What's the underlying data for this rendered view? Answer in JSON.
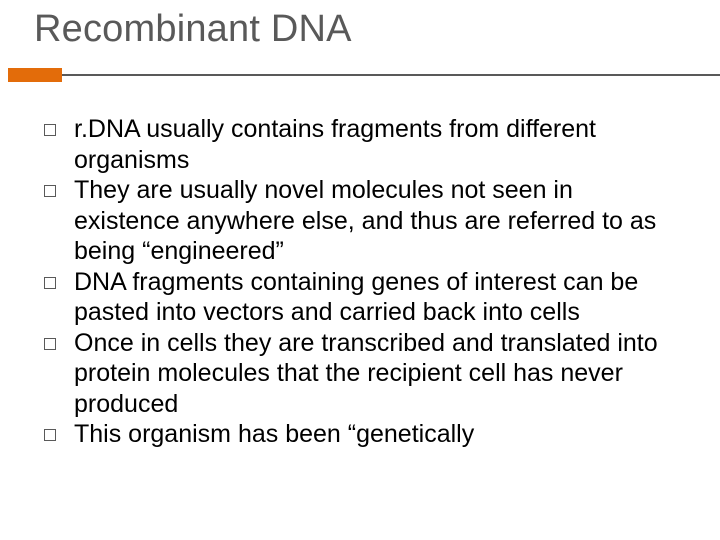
{
  "slide": {
    "title": "Recombinant DNA",
    "title_color": "#595959",
    "title_fontsize": 38,
    "accent_color": "#e36c0a",
    "rule_color": "#595959",
    "background_color": "#ffffff",
    "body_fontsize": 25,
    "body_color": "#000000",
    "bullet_border_color": "#595959",
    "bullets": [
      "r.DNA usually contains fragments from different organisms",
      "They are usually novel molecules not seen in existence anywhere else, and thus are referred to as being “engineered”",
      "DNA fragments containing genes of interest can be pasted into vectors and carried back into cells",
      "Once in cells they are transcribed and translated into protein molecules that the recipient cell has never produced",
      "This organism has been “genetically"
    ]
  }
}
